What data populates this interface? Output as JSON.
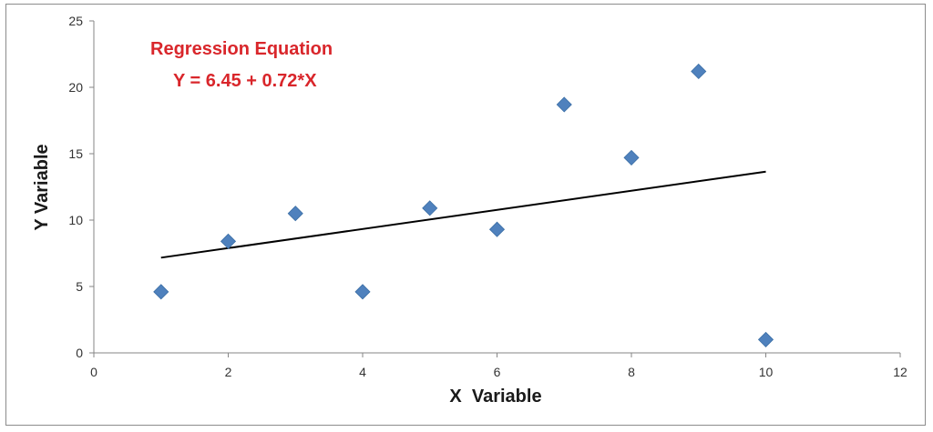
{
  "chart_data": {
    "type": "scatter",
    "xlabel": "X  Variable",
    "ylabel": "Y Variable",
    "xlim": [
      0,
      12
    ],
    "ylim": [
      0,
      25
    ],
    "xticks": [
      "0",
      "2",
      "4",
      "6",
      "8",
      "10",
      "12"
    ],
    "yticks": [
      "0",
      "5",
      "10",
      "15",
      "20",
      "25"
    ],
    "grid": false,
    "points": [
      {
        "x": 1,
        "y": 4.6
      },
      {
        "x": 2,
        "y": 8.4
      },
      {
        "x": 3,
        "y": 10.5
      },
      {
        "x": 4,
        "y": 4.6
      },
      {
        "x": 5,
        "y": 10.9
      },
      {
        "x": 6,
        "y": 9.3
      },
      {
        "x": 7,
        "y": 18.7
      },
      {
        "x": 8,
        "y": 14.7
      },
      {
        "x": 9,
        "y": 21.2
      },
      {
        "x": 10,
        "y": 1.0
      }
    ],
    "regression": {
      "intercept": 6.45,
      "slope": 0.72,
      "x_start": 1,
      "x_end": 10
    },
    "annotation": {
      "line1": "Regression Equation",
      "line2": "Y = 6.45 + 0.72*X"
    },
    "colors": {
      "marker": "#4f81bd",
      "line": "#000000",
      "annotation": "#d9262b"
    }
  }
}
